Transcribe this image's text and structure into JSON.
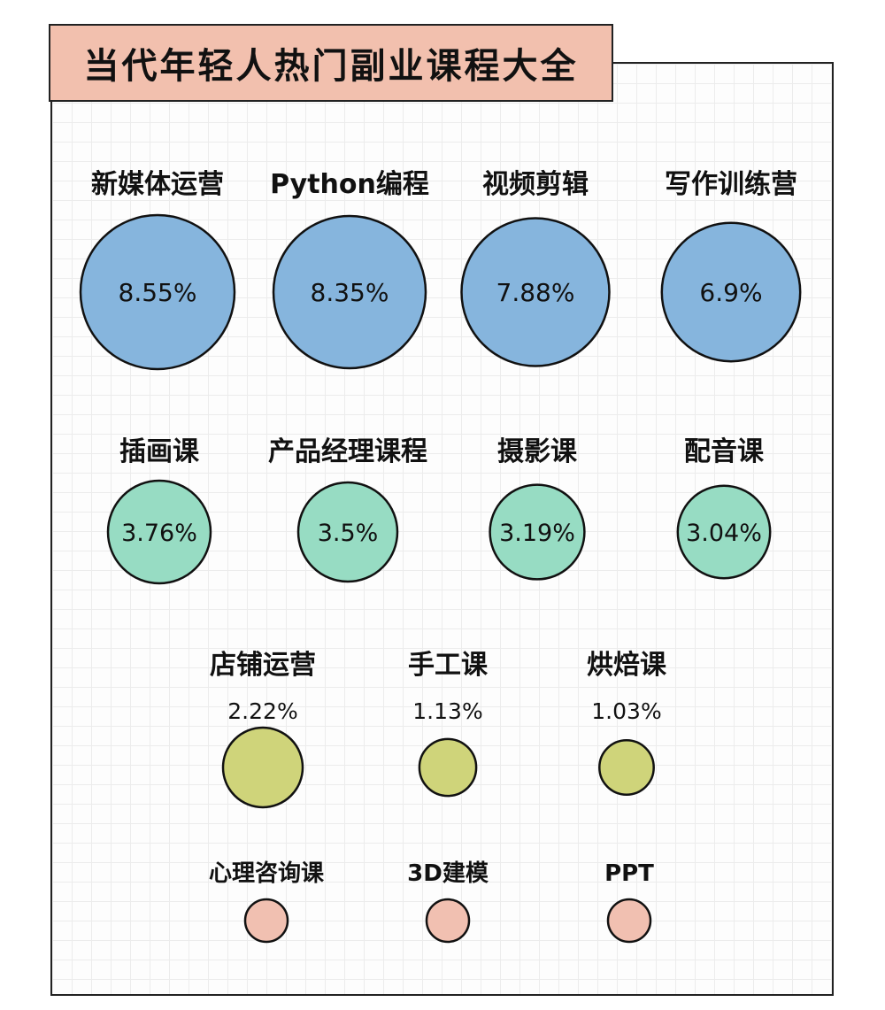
{
  "title": "当代年轻人热门副业课程大全",
  "chart_data": {
    "type": "bubble",
    "title": "当代年轻人热门副业课程大全",
    "unit": "%",
    "colors": {
      "blue": "#86b5dd",
      "teal": "#97dcc3",
      "olive": "#cfd47a",
      "pink": "#f1c0b1",
      "title_bg": "#f2c0ae"
    },
    "rows": [
      {
        "tier": "large",
        "color": "blue",
        "value_position": "inside",
        "items": [
          {
            "name": "新媒体运营",
            "value": 8.55,
            "label": "8.55%"
          },
          {
            "name": "Python编程",
            "value": 8.35,
            "label": "8.35%"
          },
          {
            "name": "视频剪辑",
            "value": 7.88,
            "label": "7.88%"
          },
          {
            "name": "写作训练营",
            "value": 6.9,
            "label": "6.9%"
          }
        ]
      },
      {
        "tier": "medium",
        "color": "teal",
        "value_position": "inside",
        "items": [
          {
            "name": "插画课",
            "value": 3.76,
            "label": "3.76%"
          },
          {
            "name": "产品经理课程",
            "value": 3.5,
            "label": "3.5%"
          },
          {
            "name": "摄影课",
            "value": 3.19,
            "label": "3.19%"
          },
          {
            "name": "配音课",
            "value": 3.04,
            "label": "3.04%"
          }
        ]
      },
      {
        "tier": "small",
        "color": "olive",
        "value_position": "above",
        "items": [
          {
            "name": "店铺运营",
            "value": 2.22,
            "label": "2.22%"
          },
          {
            "name": "手工课",
            "value": 1.13,
            "label": "1.13%"
          },
          {
            "name": "烘焙课",
            "value": 1.03,
            "label": "1.03%"
          }
        ]
      },
      {
        "tier": "tiny",
        "color": "pink",
        "value_position": "none",
        "items": [
          {
            "name": "心理咨询课",
            "value": null,
            "label": ""
          },
          {
            "name": "3D建模",
            "value": null,
            "label": ""
          },
          {
            "name": "PPT",
            "value": null,
            "label": ""
          }
        ]
      }
    ]
  }
}
